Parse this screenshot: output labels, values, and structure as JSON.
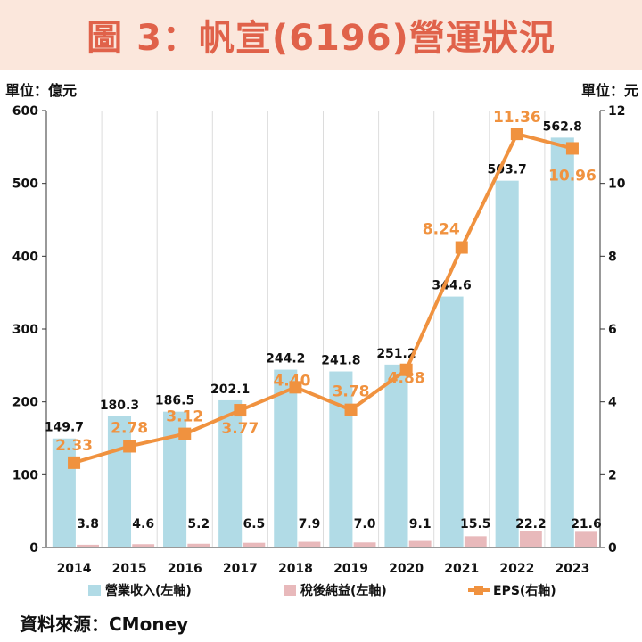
{
  "title": "圖 3：帆宣(6196)營運狀況",
  "units": {
    "left": "單位：億元",
    "right": "單位：元"
  },
  "source": "資料來源：CMoney",
  "colors": {
    "revenue": "#b1dbe6",
    "net_income": "#e8b9bb",
    "eps": "#f0923f",
    "title": "#e0624a",
    "title_bg": "#fbe7dc"
  },
  "chart_data": {
    "type": "bar",
    "categories": [
      "2014",
      "2015",
      "2016",
      "2017",
      "2018",
      "2019",
      "2020",
      "2021",
      "2022",
      "2023"
    ],
    "series": [
      {
        "name": "營業收入(左軸)",
        "type": "bar",
        "axis": "left",
        "values": [
          149.7,
          180.3,
          186.5,
          202.1,
          244.2,
          241.8,
          251.2,
          344.6,
          503.7,
          562.8
        ]
      },
      {
        "name": "稅後純益(左軸)",
        "type": "bar",
        "axis": "left",
        "values": [
          3.8,
          4.6,
          5.2,
          6.5,
          7.9,
          7.0,
          9.1,
          15.5,
          22.2,
          21.6
        ]
      },
      {
        "name": "EPS(右軸)",
        "type": "line",
        "axis": "right",
        "values": [
          2.33,
          2.78,
          3.12,
          3.77,
          4.4,
          3.78,
          4.88,
          8.24,
          11.36,
          10.96
        ]
      }
    ],
    "left_ylim": [
      0,
      600
    ],
    "left_ticks": [
      "0",
      "100",
      "200",
      "300",
      "400",
      "500",
      "600"
    ],
    "right_ylim": [
      0,
      12
    ],
    "right_ticks": [
      "0",
      "2",
      "4",
      "6",
      "8",
      "10",
      "12"
    ],
    "revenue_labels": [
      "149.7",
      "180.3",
      "186.5",
      "202.1",
      "244.2",
      "241.8",
      "251.2",
      "344.6",
      "503.7",
      "562.8"
    ],
    "net_income_labels": [
      "3.8",
      "4.6",
      "5.2",
      "6.5",
      "7.9",
      "7.0",
      "9.1",
      "15.5",
      "22.2",
      "21.6"
    ],
    "eps_labels": [
      "2.33",
      "2.78",
      "3.12",
      "3.77",
      "4.40",
      "3.78",
      "4.88",
      "8.24",
      "11.36",
      "10.96"
    ],
    "grid": "vertical",
    "legend": "bottom"
  }
}
